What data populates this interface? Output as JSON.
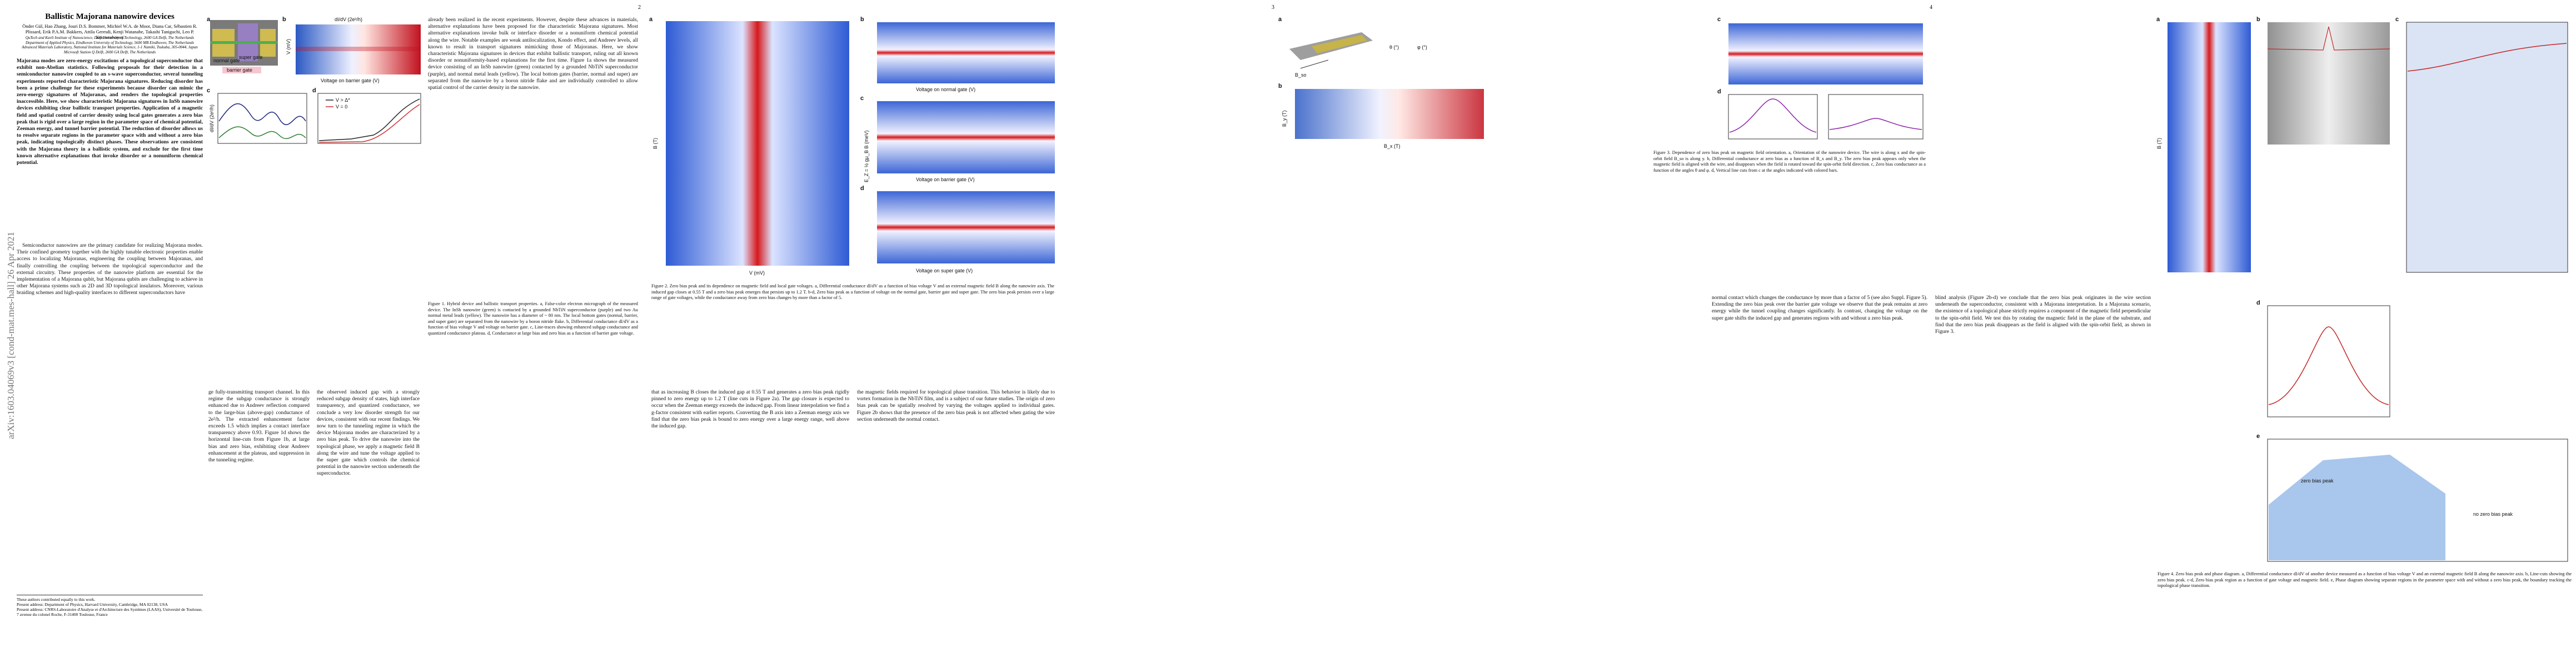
{
  "stamp": "arXiv:1603.04069v3 [cond-mat.mes-hall] 26 Apr 2021",
  "page_numbers": [
    "2",
    "3",
    "4"
  ],
  "page1": {
    "title": "Ballistic Majorana nanowire devices",
    "authors": "Önder Gül, Hao Zhang, Jouri D.S. Bommer, Michiel W.A. de Moor, Diana Car, Sébastien R. Plissard, Erik P.A.M. Bakkers, Attila Geresdi, Kenji Watanabe, Takashi Taniguchi, Leo P. Kouwenhoven",
    "affiliations": [
      "QuTech and Kavli Institute of Nanoscience, Delft University of Technology, 2600 GA Delft, The Netherlands",
      "Department of Applied Physics, Eindhoven University of Technology, 5600 MB Eindhoven, The Netherlands",
      "Advanced Materials Laboratory, National Institute for Materials Science, 1-1 Namiki, Tsukuba, 305-0044, Japan",
      "Microsoft Station Q Delft, 2600 GA Delft, The Netherlands"
    ],
    "abstract": "Majorana modes are zero-energy excitations of a topological superconductor that exhibit non-Abelian statistics. Following proposals for their detection in a semiconductor nanowire coupled to an s-wave superconductor, several tunneling experiments reported characteristic Majorana signatures. Reducing disorder has been a prime challenge for these experiments because disorder can mimic the zero-energy signatures of Majoranas, and renders the topological properties inaccessible. Here, we show characteristic Majorana signatures in InSb nanowire devices exhibiting clear ballistic transport properties. Application of a magnetic field and spatial control of carrier density using local gates generates a zero bias peak that is rigid over a large region in the parameter space of chemical potential, Zeeman energy, and tunnel barrier potential. The reduction of disorder allows us to resolve separate regions in the parameter space with and without a zero bias peak, indicating topologically distinct phases. These observations are consistent with the Majorana theory in a ballistic system, and exclude for the first time known alternative explanations that invoke disorder or a nonuniform chemical potential.",
    "intro": "Semiconductor nanowires are the primary candidate for realizing Majorana modes. Their confined geometry together with the highly tunable electronic properties enable access to localizing Majoranas, engineering the coupling between Majoranas, and finally controlling the coupling between the topological superconductor and the external circuitry. These properties of the nanowire platform are essential for the implementation of a Majorana qubit, but Majorana qubits are challenging to achieve in other Majorana systems such as 2D and 3D topological insulators. Moreover, various braiding schemes and high-quality interfaces to different superconductors have",
    "footnotes": [
      "These authors contributed equally to this work.",
      "Present address: Department of Physics, Harvard University, Cambridge, MA 02138, USA",
      "Present address: CNRS-Laboratoire d'Analyse et d'Architecture des Systèmes (LAAS), Université de Toulouse, 7 avenue du colonel Roche, F-31400 Toulouse, France"
    ]
  },
  "fig1": {
    "panels": [
      "a",
      "b",
      "c",
      "d"
    ],
    "gates": [
      "normal gate",
      "super gate",
      "barrier gate"
    ],
    "cbar": "dI/dV (2e²/h)",
    "ylabel": "V (mV)",
    "xlabel": "Voltage on barrier gate (V)",
    "ylabel_c": "dI/dV (2e²/h)",
    "legend": [
      "V > Δ*",
      "V = 0"
    ],
    "caption": "Figure 1. Hybrid device and ballistic transport properties. a, False-color electron micrograph of the measured device. The InSb nanowire (green) is contacted by a grounded NbTiN superconductor (purple) and two Au normal metal leads (yellow). The nanowire has a diameter of ~ 80 nm. The local bottom gates (normal, barrier, and super gate) are separated from the nanowire by a boron nitride flake. b, Differential conductance dI/dV as a function of bias voltage V and voltage on barrier gate. c, Line-traces showing enhanced subgap conductance and quantized conductance plateau. d, Conductance at large bias and zero bias as a function of barrier gate voltage."
  },
  "fig2": {
    "panels": [
      "a",
      "b",
      "c",
      "d"
    ],
    "ylabel_a": "B (T)",
    "xlabel_a": "V (mV)",
    "xlabels": [
      "Voltage on normal gate (V)",
      "Voltage on barrier gate (V)",
      "Voltage on super gate (V)"
    ],
    "ylabel_ez": "E_Z = ½ gμ_B B (meV)",
    "caption": "Figure 2. Zero bias peak and its dependence on magnetic field and local gate voltages. a, Differential conductance dI/dV as a function of bias voltage V and an external magnetic field B along the nanowire axis. The induced gap closes at 0.55 T and a zero bias peak emerges that persists up to 1.2 T. b-d, Zero bias peak as a function of voltage on the normal gate, barrier gate and super gate. The zero bias peak persists over a large range of gate voltages, while the conductance away from zero bias changes by more than a factor of 5."
  },
  "fig3": {
    "panels": [
      "a",
      "b",
      "c",
      "d"
    ],
    "bso": "B_so",
    "theta": "θ (°)",
    "phi": "φ (°)",
    "by": "B_y (T)",
    "bx": "B_x (T)",
    "caption": "Figure 3. Dependence of zero bias peak on magnetic field orientation. a, Orientation of the nanowire device. The wire is along x and the spin-orbit field B_so is along y. b, Differential conductance at zero bias as a function of B_x and B_y. The zero bias peak appears only when the magnetic field is aligned with the wire, and disappears when the field is rotated toward the spin-orbit field direction. c, Zero bias conductance as a function of the angles θ and φ. d, Vertical line cuts from c at the angles indicated with colored bars."
  },
  "fig4": {
    "panels": [
      "a",
      "b",
      "c",
      "d",
      "e"
    ],
    "bfield": "B (T)",
    "zbp": "zero bias peak",
    "nozbp": "no zero bias peak",
    "caption": "Figure 4. Zero bias peak and phase diagram. a, Differential conductance dI/dV of another device measured as a function of bias voltage V and an external magnetic field B along the nanowire axis. b, Line-cuts showing the zero bias peak. c-d, Zero bias peak region as a function of gate voltage and magnetic field. e, Phase diagram showing separate regions in the parameter space with and without a zero bias peak, the boundary tracking the topological phase transition."
  },
  "body": [
    "already been realized in the recent experiments. However, despite these advances in materials, alternative explanations have been proposed for the characteristic Majorana signatures. Most alternative explanations invoke bulk or interface disorder or a nonuniform chemical potential along the wire. Notable examples are weak antilocalization, Kondo effect, and Andreev levels, all known to result in transport signatures mimicking those of Majoranas. Here, we show characteristic Majorana signatures in devices that exhibit ballistic transport, ruling out all known disorder or nonuniformity-based explanations for the first time. Figure 1a shows the measured device consisting of an InSb nanowire (green) contacted by a grounded NbTiN superconductor (purple), and normal metal leads (yellow). The local bottom gates (barrier, normal and super) are separated from the nanowire by a boron nitride flake and are individually controlled to allow spatial control of the carrier density in the nanowire.",
    "ge fully-transmitting transport channel. In this regime the subgap conductance is strongly enhanced due to Andreev reflection compared to the large-bias (above-gap) conductance of 2e²/h. The extracted enhancement factor exceeds 1.5 which implies a contact interface transparency above 0.93. Figure 1d shows the horizontal line-cuts from Figure 1b, at large bias and zero bias, exhibiting clear Andreev enhancement at the plateau, and suppression in the tunneling regime.",
    "the observed induced gap with a strongly reduced subgap density of states, high interface transparency, and quantized conductance, we conclude a very low disorder strength for our devices, consistent with our recent findings. We now turn to the tunneling regime in which the device Majorana modes are characterized by a zero bias peak. To drive the nanowire into the topological phase, we apply a magnetic field B along the wire and tune the voltage applied to the super gate which controls the chemical potential in the nanowire section underneath the superconductor.",
    "that as increasing B closes the induced gap at 0.55 T and generates a zero bias peak rigidly pinned to zero energy up to 1.2 T (line cuts in Figure 2a). The gap closure is expected to occur when the Zeeman energy exceeds the induced gap. From linear interpolation we find a g-factor consistent with earlier reports. Converting the B axis into a Zeeman energy axis we find that the zero bias peak is bound to zero energy over a large energy range, well above the induced gap.",
    "the magnetic fields required for topological phase transition. This behavior is likely due to vortex formation in the NbTiN film, and is a subject of our future studies. The origin of zero bias peak can be spatially resolved by varying the voltages applied to individual gates. Figure 2b shows that the presence of the zero bias peak is not affected when gating the wire section underneath the normal contact.",
    "normal contact which changes the conductance by more than a factor of 5 (see also Suppl. Figure 5). Extending the zero bias peak over the barrier gate voltage we observe that the peak remains at zero energy while the tunnel coupling changes significantly. In contrast, changing the voltage on the super gate shifts the induced gap and generates regions with and without a zero bias peak.",
    "blind analysis (Figure 2b-d) we conclude that the zero bias peak originates in the wire section underneath the superconductor, consistent with a Majorana interpretation. In a Majorana scenario, the existence of a topological phase strictly requires a component of the magnetic field perpendicular to the spin-orbit field. We test this by rotating the magnetic field in the plane of the substrate, and find that the zero bias peak disappears as the field is aligned with the spin-orbit field, as shown in Figure 3."
  ]
}
